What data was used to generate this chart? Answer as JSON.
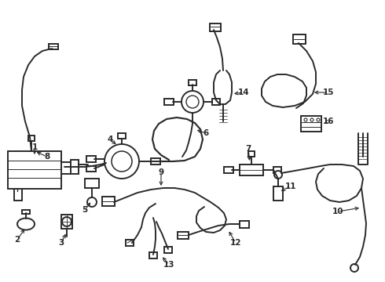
{
  "bg_color": "#ffffff",
  "line_color": "#2a2a2a",
  "lw": 1.4,
  "figsize": [
    4.9,
    3.6
  ],
  "dpi": 100
}
